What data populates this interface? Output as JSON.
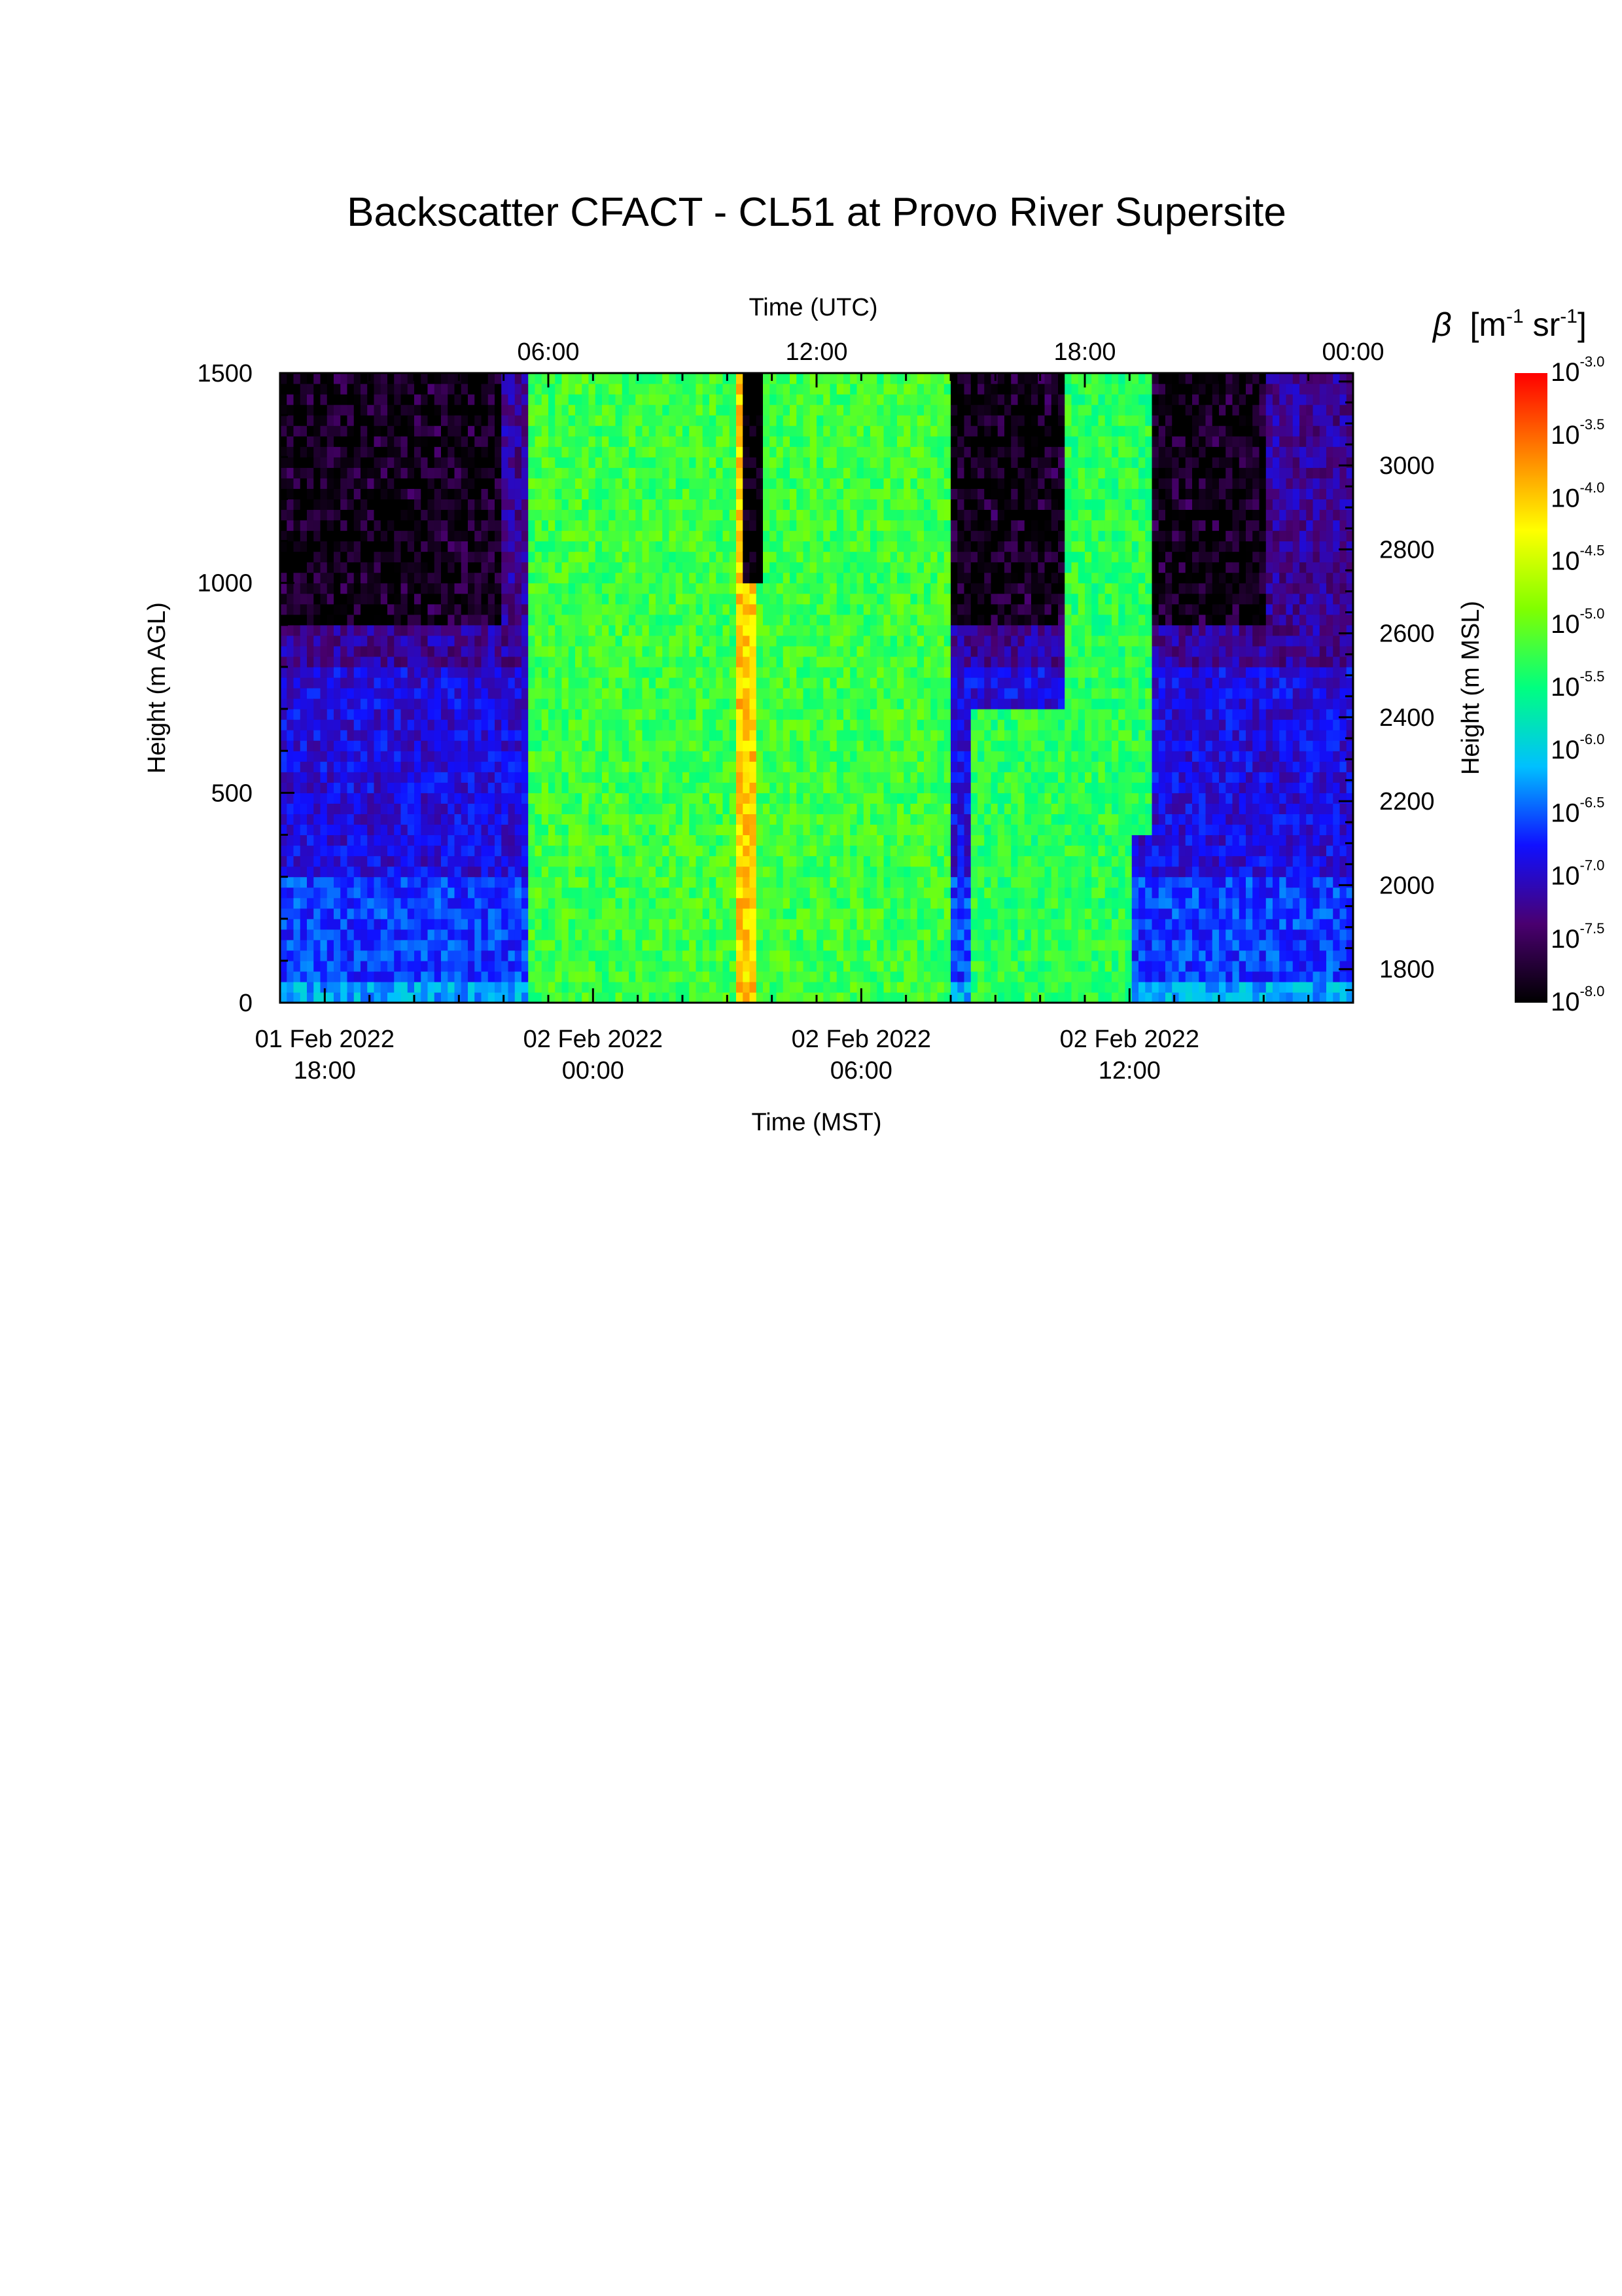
{
  "chart_data": {
    "type": "heatmap",
    "title": "Backscatter CFACT - CL51 at Provo River Supersite",
    "x_bottom": {
      "label": "Time (MST)",
      "ticks": [
        {
          "line1": "01 Feb 2022",
          "line2": "18:00",
          "hours": 1
        },
        {
          "line1": "02 Feb 2022",
          "line2": "00:00",
          "hours": 7
        },
        {
          "line1": "02 Feb 2022",
          "line2": "06:00",
          "hours": 13
        },
        {
          "line1": "02 Feb 2022",
          "line2": "12:00",
          "hours": 19
        }
      ],
      "range_hours_from_1700_MST": [
        0,
        24
      ]
    },
    "x_top": {
      "label": "Time (UTC)",
      "ticks": [
        {
          "label": "06:00",
          "hours": 6
        },
        {
          "label": "12:00",
          "hours": 12
        },
        {
          "label": "18:00",
          "hours": 18
        },
        {
          "label": "00:00",
          "hours": 24
        }
      ]
    },
    "y_left": {
      "label": "Height (m AGL)",
      "ticks": [
        "0",
        "500",
        "1000",
        "1500"
      ],
      "range": [
        0,
        1500
      ]
    },
    "y_right": {
      "label": "Height (m MSL)",
      "ticks": [
        "1800",
        "2000",
        "2200",
        "2400",
        "2600",
        "2800",
        "3000"
      ],
      "range": [
        1720,
        3220
      ]
    },
    "colorbar": {
      "label_symbol": "β",
      "label_unit_parts": [
        "[m",
        "-1",
        " sr",
        "-1",
        "]"
      ],
      "base": "10",
      "exponents": [
        "-3.0",
        "-3.5",
        "-4.0",
        "-4.5",
        "-5.0",
        "-5.5",
        "-6.0",
        "-6.5",
        "-7.0",
        "-7.5",
        "-8.0"
      ],
      "log10_range": [
        -8.0,
        -3.0
      ],
      "colormap": [
        "#000000",
        "#4a0070",
        "#1010ff",
        "#00c0ff",
        "#00ff80",
        "#80ff00",
        "#ffff00",
        "#ff8000",
        "#ff0000"
      ]
    },
    "features": [
      {
        "desc": "near-surface layer",
        "hours": [
          0,
          24
        ],
        "height_m": [
          0,
          50
        ],
        "log10_beta": -6.2
      },
      {
        "desc": "thick cloud/precip column",
        "hours": [
          5.5,
          15
        ],
        "height_m": [
          0,
          1500
        ],
        "log10_beta": -5.2
      },
      {
        "desc": "dense fall streak",
        "hours": [
          10.2,
          10.7
        ],
        "height_m": [
          0,
          1500
        ],
        "log10_beta": -4.0
      },
      {
        "desc": "clear gap above",
        "hours": [
          10.3,
          10.8
        ],
        "height_m": [
          1000,
          1500
        ],
        "log10_beta": -8.0
      },
      {
        "desc": "low aerosol layer",
        "hours": [
          15.5,
          19
        ],
        "height_m": [
          0,
          700
        ],
        "log10_beta": -5.3
      },
      {
        "desc": "cloud streaks",
        "hours": [
          17.5,
          19.5
        ],
        "height_m": [
          400,
          1500
        ],
        "log10_beta": -5.3
      }
    ]
  }
}
